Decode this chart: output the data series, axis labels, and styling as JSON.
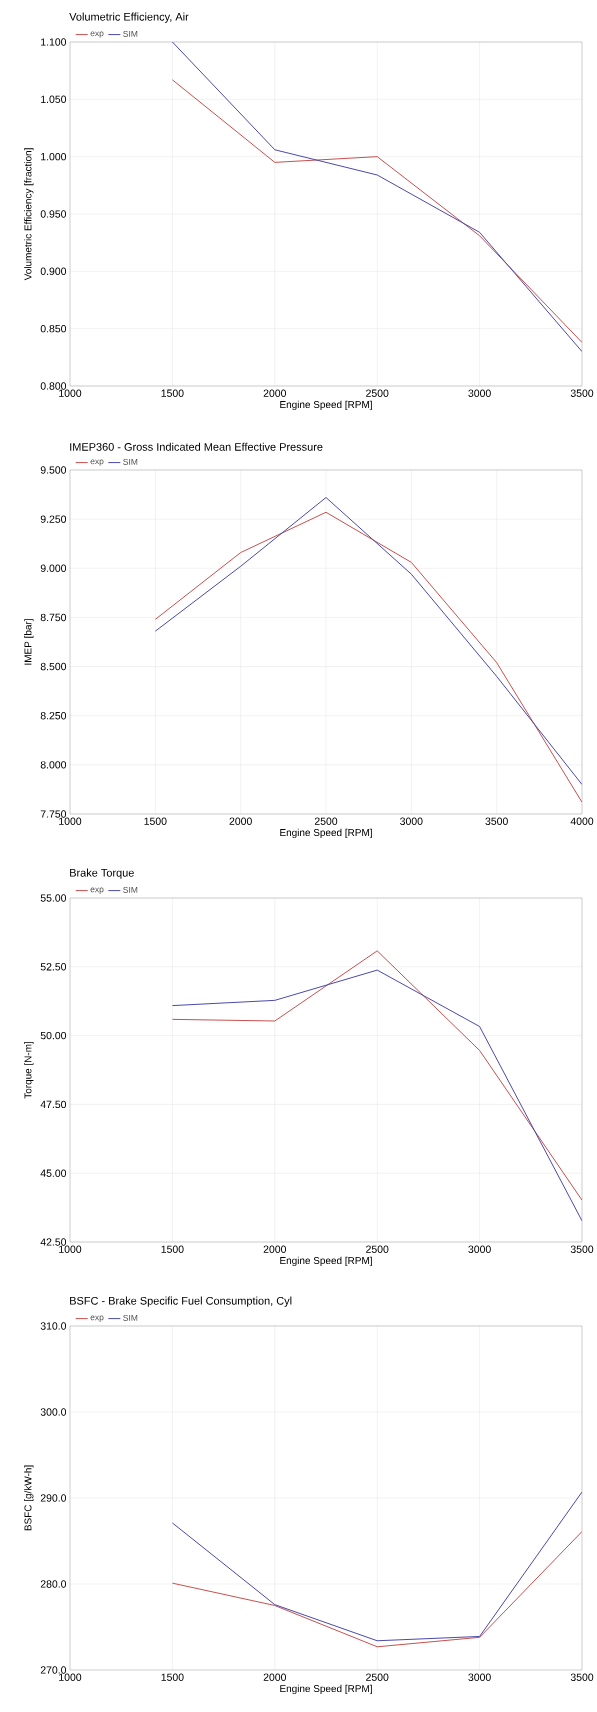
{
  "chart_data": [
    {
      "type": "line",
      "title": "Volumetric Efficiency, Air",
      "xlabel": "Engine Speed [RPM]",
      "ylabel": "Volumetric Efficiency [fraction]",
      "x": [
        1500,
        2000,
        2500,
        3000,
        3500
      ],
      "series": [
        {
          "name": "exp",
          "color": "#c8504f",
          "values": [
            1.067,
            0.995,
            1.0,
            0.931,
            0.838
          ]
        },
        {
          "name": "SIM",
          "color": "#4a4aaa",
          "values": [
            1.1,
            1.006,
            0.984,
            0.934,
            0.83
          ]
        }
      ],
      "xlim": [
        1000,
        3500
      ],
      "ylim": [
        0.8,
        1.1
      ],
      "xticks": [
        1000,
        1500,
        2000,
        2500,
        3000,
        3500
      ],
      "yticks": [
        {
          "value": 0.8,
          "label": "0.800"
        },
        {
          "value": 0.85,
          "label": "0.850"
        },
        {
          "value": 0.9,
          "label": "0.900"
        },
        {
          "value": 0.95,
          "label": "0.950"
        },
        {
          "value": 1.0,
          "label": "1.000"
        },
        {
          "value": 1.05,
          "label": "1.050"
        },
        {
          "value": 1.1,
          "label": "1.100"
        }
      ],
      "grid": true,
      "legend": "top left"
    },
    {
      "type": "line",
      "title": "IMEP360 - Gross Indicated Mean Effective Pressure",
      "xlabel": "Engine Speed [RPM]",
      "ylabel": "IMEP [bar]",
      "x": [
        1500,
        2000,
        2500,
        3000,
        3500,
        4000
      ],
      "series": [
        {
          "name": "exp",
          "color": "#c8504f",
          "values": [
            8.74,
            9.08,
            9.285,
            9.03,
            8.52,
            7.81
          ]
        },
        {
          "name": "SIM",
          "color": "#4a4aaa",
          "values": [
            8.68,
            9.01,
            9.36,
            8.97,
            8.45,
            7.9
          ]
        }
      ],
      "xlim": [
        1000,
        4000
      ],
      "ylim": [
        7.75,
        9.5
      ],
      "xticks": [
        1000,
        1500,
        2000,
        2500,
        3000,
        3500,
        4000
      ],
      "yticks": [
        {
          "value": 7.75,
          "label": "7.750"
        },
        {
          "value": 8.0,
          "label": "8.000"
        },
        {
          "value": 8.25,
          "label": "8.250"
        },
        {
          "value": 8.5,
          "label": "8.500"
        },
        {
          "value": 8.75,
          "label": "8.750"
        },
        {
          "value": 9.0,
          "label": "9.000"
        },
        {
          "value": 9.25,
          "label": "9.250"
        },
        {
          "value": 9.5,
          "label": "9.500"
        }
      ],
      "grid": true,
      "legend": "top left"
    },
    {
      "type": "line",
      "title": "Brake Torque",
      "xlabel": "Engine Speed [RPM]",
      "ylabel": "Torque [N-m]",
      "x": [
        1500,
        2000,
        2500,
        3000,
        3500
      ],
      "series": [
        {
          "name": "exp",
          "color": "#c8504f",
          "values": [
            50.59,
            50.53,
            53.08,
            49.46,
            44.02
          ]
        },
        {
          "name": "SIM",
          "color": "#4a4aaa",
          "values": [
            51.09,
            51.28,
            52.38,
            50.33,
            43.27
          ]
        }
      ],
      "xlim": [
        1000,
        3500
      ],
      "ylim": [
        42.5,
        55
      ],
      "xticks": [
        1000,
        1500,
        2000,
        2500,
        3000,
        3500
      ],
      "yticks": [
        {
          "value": 42.5,
          "label": "42.50"
        },
        {
          "value": 45,
          "label": "45.00"
        },
        {
          "value": 47.5,
          "label": "47.50"
        },
        {
          "value": 50,
          "label": "50.00"
        },
        {
          "value": 52.5,
          "label": "52.50"
        },
        {
          "value": 55,
          "label": "55.00"
        }
      ],
      "grid": true,
      "legend": "top left"
    },
    {
      "type": "line",
      "title": "BSFC - Brake Specific Fuel Consumption, Cyl",
      "xlabel": "Engine Speed [RPM]",
      "ylabel": "BSFC [g/kW-h]",
      "x": [
        1500,
        2000,
        2500,
        3000,
        3500
      ],
      "series": [
        {
          "name": "exp",
          "color": "#c8504f",
          "values": [
            280.1,
            277.5,
            272.7,
            273.8,
            286.1
          ]
        },
        {
          "name": "SIM",
          "color": "#4a4aaa",
          "values": [
            287.1,
            277.6,
            273.4,
            273.9,
            290.7
          ]
        }
      ],
      "xlim": [
        1000,
        3500
      ],
      "ylim": [
        270,
        310
      ],
      "xticks": [
        1000,
        1500,
        2000,
        2500,
        3000,
        3500
      ],
      "yticks": [
        {
          "value": 270,
          "label": "270.0"
        },
        {
          "value": 280,
          "label": "280.0"
        },
        {
          "value": 290,
          "label": "290.0"
        },
        {
          "value": 300,
          "label": "300.0"
        },
        {
          "value": 310,
          "label": "310.0"
        }
      ],
      "grid": true,
      "legend": "top left"
    }
  ]
}
